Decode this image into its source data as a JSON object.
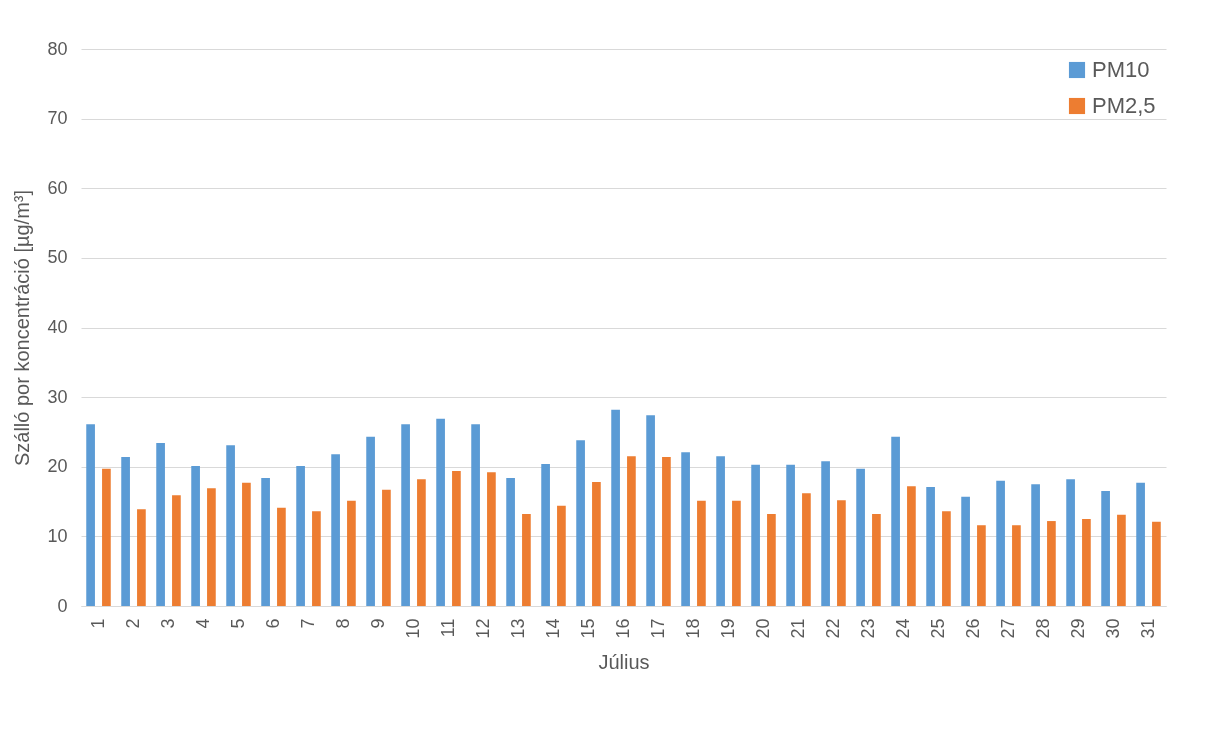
{
  "chart_data": {
    "type": "bar",
    "xlabel": "Július",
    "ylabel": "Szálló por koncentráció [µg/m³]",
    "categories": [
      "1",
      "2",
      "3",
      "4",
      "5",
      "6",
      "7",
      "8",
      "9",
      "10",
      "11",
      "12",
      "13",
      "14",
      "15",
      "16",
      "17",
      "18",
      "19",
      "20",
      "21",
      "22",
      "23",
      "24",
      "25",
      "26",
      "27",
      "28",
      "29",
      "30",
      "31"
    ],
    "series": [
      {
        "name": "PM10",
        "color": "#5b9bd5",
        "values": [
          26.1,
          21.4,
          23.4,
          20.1,
          23.1,
          18.4,
          20.1,
          21.8,
          24.3,
          26.1,
          26.9,
          26.1,
          18.4,
          20.4,
          23.8,
          28.2,
          27.4,
          22.1,
          21.5,
          20.3,
          20.3,
          20.8,
          19.7,
          24.3,
          17.1,
          15.7,
          18.0,
          17.5,
          18.2,
          16.5,
          17.7
        ]
      },
      {
        "name": "PM2,5",
        "color": "#ed7d31",
        "values": [
          19.7,
          13.9,
          15.9,
          16.9,
          17.7,
          14.1,
          13.6,
          15.1,
          16.7,
          18.2,
          19.4,
          19.2,
          13.2,
          14.4,
          17.8,
          21.5,
          21.4,
          15.1,
          15.1,
          13.2,
          16.2,
          15.2,
          13.2,
          17.2,
          13.6,
          11.6,
          11.6,
          12.2,
          12.5,
          13.1,
          12.1
        ]
      }
    ],
    "ylim": [
      0,
      80
    ],
    "yticks": [
      0,
      10,
      20,
      30,
      40,
      50,
      60,
      70,
      80
    ],
    "grid": "y",
    "legend": "top right"
  }
}
